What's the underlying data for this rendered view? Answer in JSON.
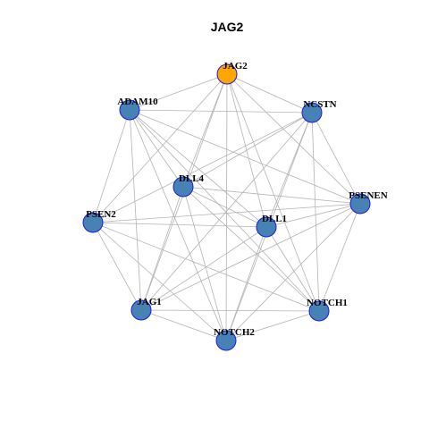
{
  "title": "JAG2",
  "colors": {
    "focus_node": "#FFA500",
    "node": "#4682B4",
    "node_border": "#1A1AE6",
    "edge": "#B3B3B3",
    "text": "#000000"
  },
  "nodes": [
    {
      "id": "JAG2",
      "label": "JAG2",
      "focus": true
    },
    {
      "id": "ADAM10",
      "label": "ADAM10",
      "focus": false
    },
    {
      "id": "NCSTN",
      "label": "NCSTN",
      "focus": false
    },
    {
      "id": "DLL4",
      "label": "DLL4",
      "focus": false
    },
    {
      "id": "PSENEN",
      "label": "PSENEN",
      "focus": false
    },
    {
      "id": "PSEN2",
      "label": "PSEN2",
      "focus": false
    },
    {
      "id": "DLL1",
      "label": "DLL1",
      "focus": false
    },
    {
      "id": "NOTCH1",
      "label": "NOTCH1",
      "focus": false
    },
    {
      "id": "JAG1",
      "label": "JAG1",
      "focus": false
    },
    {
      "id": "NOTCH2",
      "label": "NOTCH2",
      "focus": false
    }
  ],
  "edges": [
    [
      "JAG2",
      "ADAM10"
    ],
    [
      "JAG2",
      "NCSTN"
    ],
    [
      "JAG2",
      "DLL4"
    ],
    [
      "JAG2",
      "PSENEN"
    ],
    [
      "JAG2",
      "PSEN2"
    ],
    [
      "JAG2",
      "DLL1"
    ],
    [
      "JAG2",
      "NOTCH1"
    ],
    [
      "JAG2",
      "JAG1"
    ],
    [
      "JAG2",
      "NOTCH2"
    ],
    [
      "ADAM10",
      "NCSTN"
    ],
    [
      "ADAM10",
      "DLL4"
    ],
    [
      "ADAM10",
      "PSENEN"
    ],
    [
      "ADAM10",
      "PSEN2"
    ],
    [
      "ADAM10",
      "DLL1"
    ],
    [
      "ADAM10",
      "NOTCH1"
    ],
    [
      "ADAM10",
      "JAG1"
    ],
    [
      "ADAM10",
      "NOTCH2"
    ],
    [
      "NCSTN",
      "DLL4"
    ],
    [
      "NCSTN",
      "PSENEN"
    ],
    [
      "NCSTN",
      "PSEN2"
    ],
    [
      "NCSTN",
      "DLL1"
    ],
    [
      "NCSTN",
      "NOTCH1"
    ],
    [
      "NCSTN",
      "JAG1"
    ],
    [
      "NCSTN",
      "NOTCH2"
    ],
    [
      "DLL4",
      "PSENEN"
    ],
    [
      "DLL4",
      "DLL1"
    ],
    [
      "DLL4",
      "NOTCH1"
    ],
    [
      "DLL4",
      "JAG1"
    ],
    [
      "DLL4",
      "NOTCH2"
    ],
    [
      "PSENEN",
      "PSEN2"
    ],
    [
      "PSENEN",
      "DLL1"
    ],
    [
      "PSENEN",
      "NOTCH1"
    ],
    [
      "PSENEN",
      "JAG1"
    ],
    [
      "PSENEN",
      "NOTCH2"
    ],
    [
      "PSEN2",
      "DLL1"
    ],
    [
      "PSEN2",
      "NOTCH1"
    ],
    [
      "PSEN2",
      "JAG1"
    ],
    [
      "PSEN2",
      "NOTCH2"
    ],
    [
      "DLL1",
      "NOTCH1"
    ],
    [
      "DLL1",
      "JAG1"
    ],
    [
      "DLL1",
      "NOTCH2"
    ],
    [
      "NOTCH1",
      "JAG1"
    ],
    [
      "NOTCH1",
      "NOTCH2"
    ],
    [
      "JAG1",
      "NOTCH2"
    ]
  ]
}
